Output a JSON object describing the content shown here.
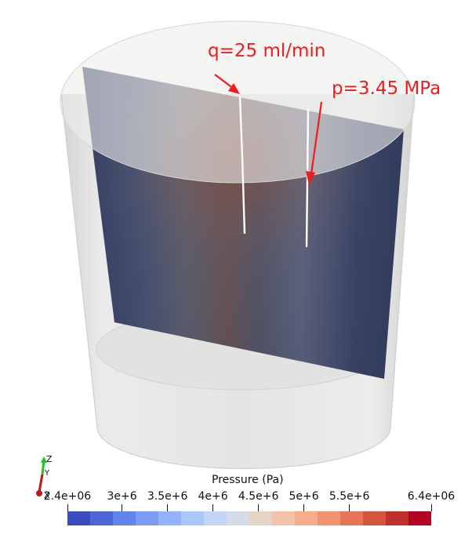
{
  "annotations": {
    "injection_rate": "q=25 ml/min",
    "production_pressure": "p=3.45 MPa"
  },
  "legend": {
    "title": "Pressure (Pa)",
    "ticks": [
      "2.4e+06",
      "3e+6",
      "3.5e+6",
      "4e+6",
      "4.5e+6",
      "5e+6",
      "5.5e+6",
      "6.4e+06"
    ],
    "tick_values": [
      2400000,
      3000000,
      3500000,
      4000000,
      4500000,
      5000000,
      5500000,
      6400000
    ],
    "range": [
      2400000,
      6400000
    ],
    "colormap": [
      "#3b4cc0",
      "#4c66d6",
      "#6283e9",
      "#7a9cf5",
      "#93b4fd",
      "#abc8fd",
      "#c2d5f4",
      "#d5dbe6",
      "#e4d4c6",
      "#f1c3a8",
      "#f5ad8c",
      "#f29370",
      "#e67556",
      "#d6553f",
      "#c0312b",
      "#b40426"
    ]
  },
  "axes_triad": {
    "labels": [
      "Z",
      "Y",
      "X"
    ]
  },
  "colors": {
    "annotation": "#ee1c1c",
    "cylinder": "#e5e5e3",
    "fracture_line": "#ffffff"
  }
}
